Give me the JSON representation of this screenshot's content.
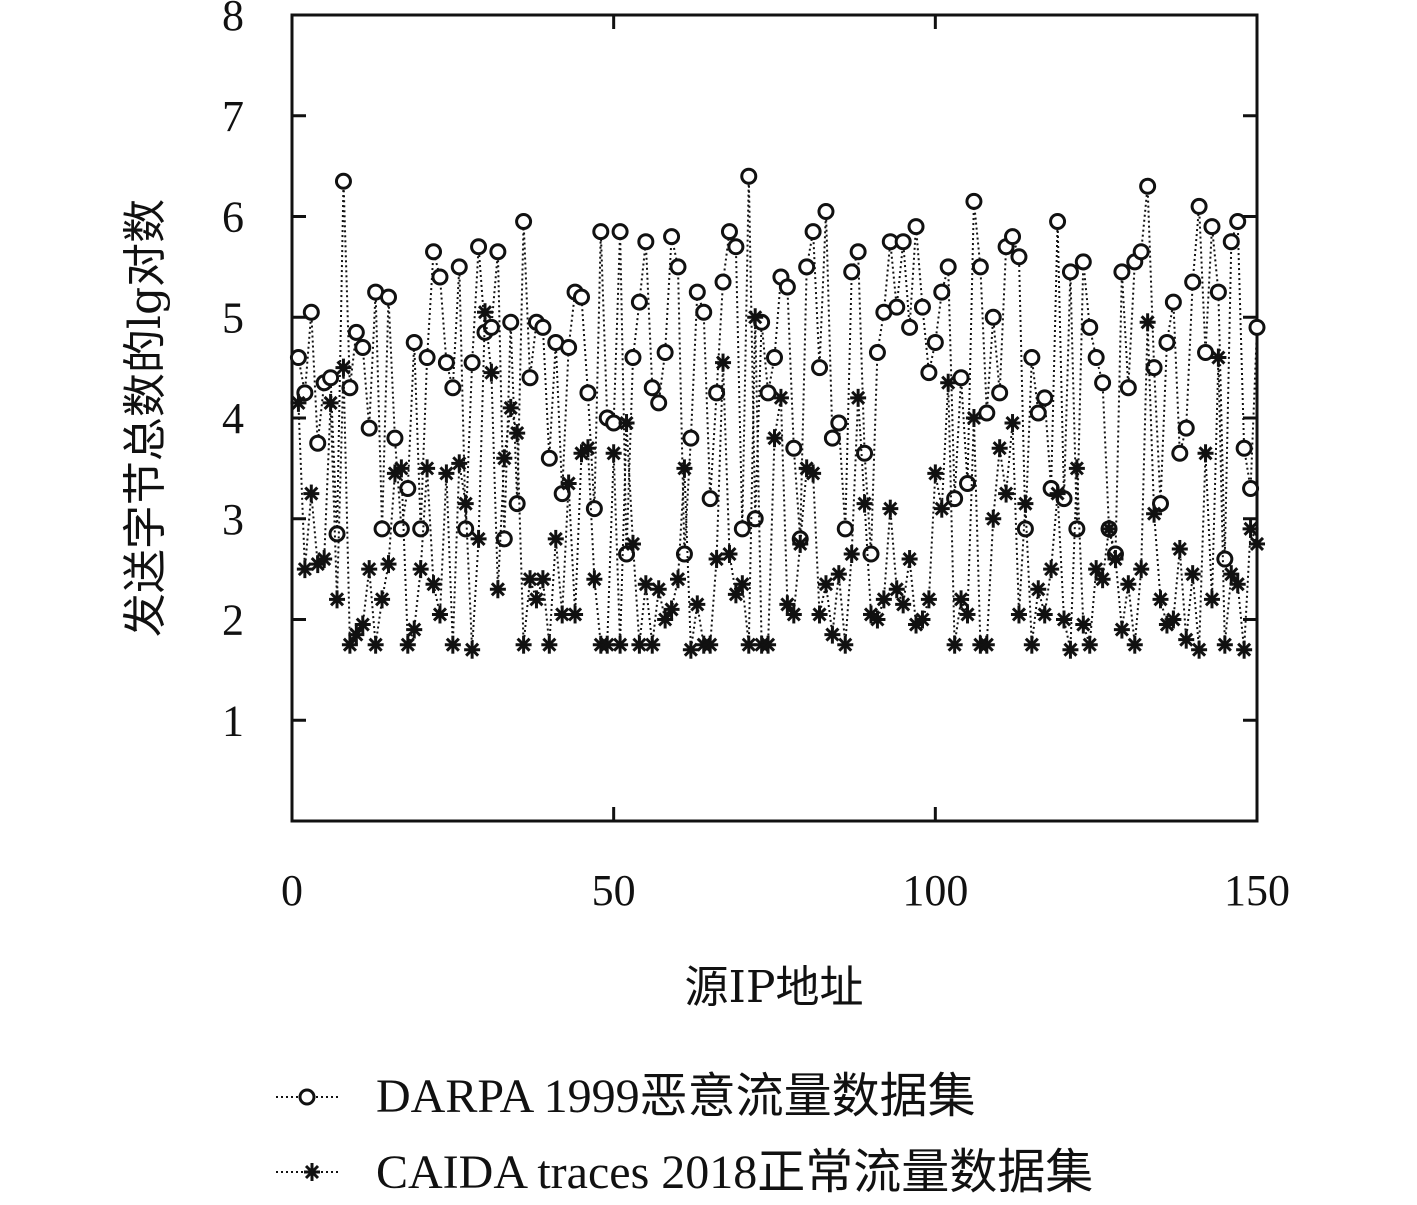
{
  "chart_data": {
    "type": "scatter",
    "xlabel": "源IP地址",
    "ylabel": "发送字节总数的lg对数",
    "xlim": [
      0,
      150
    ],
    "ylim": [
      0,
      8
    ],
    "xticks": [
      0,
      50,
      100,
      150
    ],
    "yticks": [
      1,
      2,
      3,
      4,
      5,
      6,
      7,
      8
    ],
    "grid": false,
    "legend_position": "bottom",
    "series": [
      {
        "name": "DARPA 1999恶意流量数据集",
        "marker": "circle",
        "line": "dotted",
        "x": [
          1,
          2,
          3,
          4,
          5,
          6,
          7,
          8,
          9,
          10,
          11,
          12,
          13,
          14,
          15,
          16,
          17,
          18,
          19,
          20,
          21,
          22,
          23,
          24,
          25,
          26,
          27,
          28,
          29,
          30,
          31,
          32,
          33,
          34,
          35,
          36,
          37,
          38,
          39,
          40,
          41,
          42,
          43,
          44,
          45,
          46,
          47,
          48,
          49,
          50,
          51,
          52,
          53,
          54,
          55,
          56,
          57,
          58,
          59,
          60,
          61,
          62,
          63,
          64,
          65,
          66,
          67,
          68,
          69,
          70,
          71,
          72,
          73,
          74,
          75,
          76,
          77,
          78,
          79,
          80,
          81,
          82,
          83,
          84,
          85,
          86,
          87,
          88,
          89,
          90,
          91,
          92,
          93,
          94,
          95,
          96,
          97,
          98,
          99,
          100,
          101,
          102,
          103,
          104,
          105,
          106,
          107,
          108,
          109,
          110,
          111,
          112,
          113,
          114,
          115,
          116,
          117,
          118,
          119,
          120,
          121,
          122,
          123,
          124,
          125,
          126,
          127,
          128,
          129,
          130,
          131,
          132,
          133,
          134,
          135,
          136,
          137,
          138,
          139,
          140,
          141,
          142,
          143,
          144,
          145,
          146,
          147,
          148,
          149,
          150
        ],
        "values": [
          4.6,
          4.25,
          5.05,
          3.75,
          4.35,
          4.4,
          2.85,
          6.35,
          4.3,
          4.85,
          4.7,
          3.9,
          5.25,
          2.9,
          5.2,
          3.8,
          2.9,
          3.3,
          4.75,
          2.9,
          4.6,
          5.65,
          5.4,
          4.55,
          4.3,
          5.5,
          2.9,
          4.55,
          5.7,
          4.85,
          4.9,
          5.65,
          2.8,
          4.95,
          3.15,
          5.95,
          4.4,
          4.95,
          4.9,
          3.6,
          4.75,
          3.25,
          4.7,
          5.25,
          5.2,
          4.25,
          3.1,
          5.85,
          4.0,
          3.95,
          5.85,
          2.65,
          4.6,
          5.15,
          5.75,
          4.3,
          4.15,
          4.65,
          5.8,
          5.5,
          2.65,
          3.8,
          5.25,
          5.05,
          3.2,
          4.25,
          5.35,
          5.85,
          5.7,
          2.9,
          6.4,
          3.0,
          4.95,
          4.25,
          4.6,
          5.4,
          5.3,
          3.7,
          2.8,
          5.5,
          5.85,
          4.5,
          6.05,
          3.8,
          3.95,
          2.9,
          5.45,
          5.65,
          3.65,
          2.65,
          4.65,
          5.05,
          5.75,
          5.1,
          5.75,
          4.9,
          5.9,
          5.1,
          4.45,
          4.75,
          5.25,
          5.5,
          3.2,
          4.4,
          3.35,
          6.15,
          5.5,
          4.05,
          5.0,
          4.25,
          5.7,
          5.8,
          5.6,
          2.9,
          4.6,
          4.05,
          4.2,
          3.3,
          5.95,
          3.2,
          5.45,
          2.9,
          5.55,
          4.9,
          4.6,
          4.35,
          2.9,
          2.65,
          5.45,
          4.3,
          5.55,
          5.65,
          6.3,
          4.5,
          3.15,
          4.75,
          5.15,
          3.65,
          3.9,
          5.35,
          6.1,
          4.65,
          5.9,
          5.25,
          2.6,
          5.75,
          5.95,
          3.7,
          3.3,
          4.9
        ]
      },
      {
        "name": "CAIDA traces 2018正常流量数据集",
        "marker": "asterisk",
        "line": "dotted",
        "x": [
          1,
          2,
          3,
          4,
          5,
          6,
          7,
          8,
          9,
          10,
          11,
          12,
          13,
          14,
          15,
          16,
          17,
          18,
          19,
          20,
          21,
          22,
          23,
          24,
          25,
          26,
          27,
          28,
          29,
          30,
          31,
          32,
          33,
          34,
          35,
          36,
          37,
          38,
          39,
          40,
          41,
          42,
          43,
          44,
          45,
          46,
          47,
          48,
          49,
          50,
          51,
          52,
          53,
          54,
          55,
          56,
          57,
          58,
          59,
          60,
          61,
          62,
          63,
          64,
          65,
          66,
          67,
          68,
          69,
          70,
          71,
          72,
          73,
          74,
          75,
          76,
          77,
          78,
          79,
          80,
          81,
          82,
          83,
          84,
          85,
          86,
          87,
          88,
          89,
          90,
          91,
          92,
          93,
          94,
          95,
          96,
          97,
          98,
          99,
          100,
          101,
          102,
          103,
          104,
          105,
          106,
          107,
          108,
          109,
          110,
          111,
          112,
          113,
          114,
          115,
          116,
          117,
          118,
          119,
          120,
          121,
          122,
          123,
          124,
          125,
          126,
          127,
          128,
          129,
          130,
          131,
          132,
          133,
          134,
          135,
          136,
          137,
          138,
          139,
          140,
          141,
          142,
          143,
          144,
          145,
          146,
          147,
          148,
          149,
          150
        ],
        "values": [
          4.15,
          2.5,
          3.25,
          2.55,
          2.6,
          4.15,
          2.2,
          4.5,
          1.75,
          1.85,
          1.95,
          2.5,
          1.75,
          2.2,
          2.55,
          3.45,
          3.5,
          1.75,
          1.9,
          2.5,
          3.5,
          2.35,
          2.05,
          3.45,
          1.75,
          3.55,
          3.15,
          1.7,
          2.8,
          5.05,
          4.45,
          2.3,
          3.6,
          4.1,
          3.85,
          1.75,
          2.4,
          2.2,
          2.4,
          1.75,
          2.8,
          2.05,
          3.35,
          2.05,
          3.65,
          3.7,
          2.4,
          1.75,
          1.75,
          3.65,
          1.75,
          3.95,
          2.75,
          1.75,
          2.35,
          1.75,
          2.3,
          2.0,
          2.1,
          2.4,
          3.5,
          1.7,
          2.15,
          1.75,
          1.75,
          2.6,
          4.55,
          2.65,
          2.25,
          2.35,
          1.75,
          5.0,
          1.75,
          1.75,
          3.8,
          4.2,
          2.15,
          2.05,
          2.75,
          3.5,
          3.45,
          2.05,
          2.35,
          1.85,
          2.45,
          1.75,
          2.65,
          4.2,
          3.15,
          2.05,
          2.0,
          2.2,
          3.1,
          2.3,
          2.15,
          2.6,
          1.95,
          2.0,
          2.2,
          3.45,
          3.1,
          4.35,
          1.75,
          2.2,
          2.05,
          4.0,
          1.75,
          1.75,
          3.0,
          3.7,
          3.25,
          3.95,
          2.05,
          3.15,
          1.75,
          2.3,
          2.05,
          2.5,
          3.25,
          2.0,
          1.7,
          3.5,
          1.95,
          1.75,
          2.5,
          2.4,
          2.9,
          2.6,
          1.9,
          2.35,
          1.75,
          2.5,
          4.95,
          3.05,
          2.2,
          1.95,
          2.0,
          2.7,
          1.8,
          2.45,
          1.7,
          3.65,
          2.2,
          4.6,
          1.75,
          2.45,
          2.35,
          1.7,
          2.9,
          2.75
        ]
      }
    ]
  }
}
